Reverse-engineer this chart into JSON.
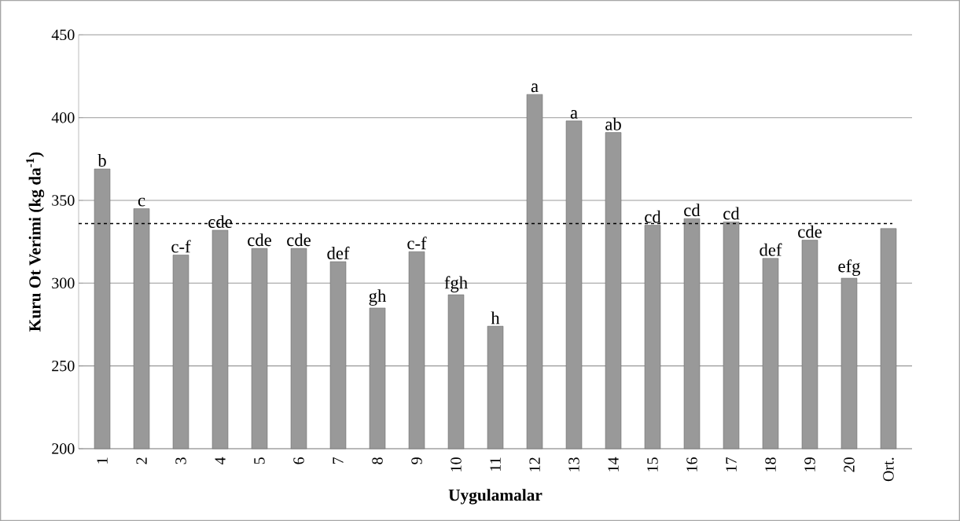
{
  "chart_data": {
    "type": "bar",
    "xlabel": "Uygulamalar",
    "ylabel": "Kuru Ot Verimi (kg da$^{-1}$)",
    "categories": [
      "1",
      "2",
      "3",
      "4",
      "5",
      "6",
      "7",
      "8",
      "9",
      "10",
      "11",
      "12",
      "13",
      "14",
      "15",
      "16",
      "17",
      "18",
      "19",
      "20",
      "Ort."
    ],
    "values": [
      369,
      345,
      317,
      332,
      321,
      321,
      313,
      285,
      319,
      293,
      274,
      414,
      398,
      391,
      335,
      339,
      337,
      315,
      326,
      303,
      333
    ],
    "value_labels": [
      "b",
      "c",
      "c-f",
      "cde",
      "cde",
      "cde",
      "def",
      "gh",
      "c-f",
      "fgh",
      "h",
      "a",
      "a",
      "ab",
      "cd",
      "cd",
      "cd",
      "def",
      "cde",
      "efg",
      null
    ],
    "color": "#999999",
    "ylim": [
      200,
      450
    ],
    "yticks": [
      200,
      250,
      300,
      350,
      400,
      450
    ],
    "grid": "y",
    "ref_lines": [
      {
        "axis": "y",
        "value": 336,
        "color": "#000000",
        "line_style": "dashed"
      }
    ]
  }
}
